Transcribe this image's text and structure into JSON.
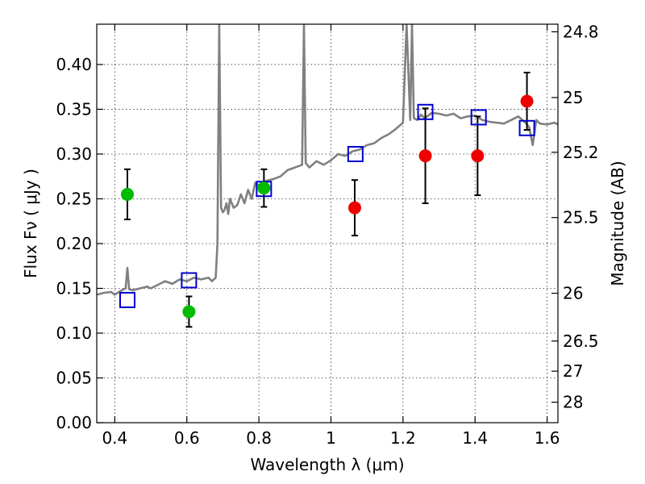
{
  "chart_data": {
    "type": "scatter",
    "title": "",
    "xlabel": "Wavelength  λ (μm)",
    "ylabel": "Flux  Fν  ( μJy )",
    "ylabel_right": "Magnitude (AB)",
    "xlim": [
      0.35,
      1.63
    ],
    "ylim": [
      0.0,
      0.445
    ],
    "grid": true,
    "x_ticks": [
      0.4,
      0.6,
      0.8,
      1.0,
      1.2,
      1.4,
      1.6
    ],
    "x_tick_labels": [
      "0.4",
      "0.6",
      "0.8",
      "1",
      "1.2",
      "1.4",
      "1.6"
    ],
    "y_ticks": [
      0.0,
      0.05,
      0.1,
      0.15,
      0.2,
      0.25,
      0.3,
      0.35,
      0.4
    ],
    "y_tick_labels": [
      "0.00",
      "0.05",
      "0.10",
      "0.15",
      "0.20",
      "0.25",
      "0.30",
      "0.35",
      "0.40"
    ],
    "mag_ticks": [
      "24.8",
      "25",
      "25.2",
      "25.5",
      "26",
      "26.5",
      "27",
      "28"
    ],
    "series": [
      {
        "name": "green-points",
        "kind": "points-with-errors",
        "color": "#00bb00",
        "x": [
          0.435,
          0.606,
          0.814
        ],
        "y": [
          0.255,
          0.124,
          0.262
        ],
        "err": [
          0.028,
          0.017,
          0.021
        ]
      },
      {
        "name": "red-points",
        "kind": "points-with-errors",
        "color": "#ee0000",
        "x": [
          1.066,
          1.262,
          1.407,
          1.544
        ],
        "y": [
          0.24,
          0.298,
          0.298,
          0.359
        ],
        "err": [
          0.031,
          0.053,
          0.044,
          0.032
        ]
      },
      {
        "name": "model-squares",
        "kind": "open-squares",
        "color": "#0000cc",
        "x": [
          0.435,
          0.606,
          0.814,
          1.068,
          1.262,
          1.41,
          1.544
        ],
        "y": [
          0.137,
          0.159,
          0.261,
          0.3,
          0.347,
          0.341,
          0.329
        ]
      },
      {
        "name": "sed-spectrum",
        "kind": "line",
        "color": "#808080",
        "x": [
          0.35,
          0.37,
          0.39,
          0.4,
          0.42,
          0.43,
          0.435,
          0.44,
          0.45,
          0.47,
          0.49,
          0.5,
          0.52,
          0.54,
          0.56,
          0.58,
          0.6,
          0.62,
          0.64,
          0.66,
          0.67,
          0.68,
          0.685,
          0.69,
          0.695,
          0.7,
          0.705,
          0.71,
          0.715,
          0.72,
          0.73,
          0.74,
          0.75,
          0.76,
          0.77,
          0.78,
          0.79,
          0.8,
          0.82,
          0.84,
          0.86,
          0.88,
          0.9,
          0.92,
          0.925,
          0.93,
          0.94,
          0.96,
          0.98,
          1.0,
          1.02,
          1.04,
          1.06,
          1.08,
          1.1,
          1.12,
          1.14,
          1.16,
          1.18,
          1.2,
          1.21,
          1.22,
          1.225,
          1.23,
          1.24,
          1.25,
          1.26,
          1.28,
          1.3,
          1.32,
          1.34,
          1.36,
          1.38,
          1.4,
          1.42,
          1.44,
          1.46,
          1.48,
          1.5,
          1.52,
          1.54,
          1.55,
          1.56,
          1.57,
          1.58,
          1.6,
          1.62,
          1.63
        ],
        "y": [
          0.143,
          0.145,
          0.146,
          0.143,
          0.148,
          0.15,
          0.173,
          0.149,
          0.148,
          0.15,
          0.152,
          0.15,
          0.154,
          0.158,
          0.155,
          0.16,
          0.158,
          0.162,
          0.16,
          0.162,
          0.158,
          0.162,
          0.2,
          0.445,
          0.24,
          0.235,
          0.238,
          0.245,
          0.233,
          0.25,
          0.24,
          0.243,
          0.255,
          0.245,
          0.26,
          0.25,
          0.268,
          0.265,
          0.27,
          0.272,
          0.275,
          0.282,
          0.285,
          0.288,
          0.445,
          0.29,
          0.285,
          0.292,
          0.288,
          0.293,
          0.3,
          0.298,
          0.303,
          0.305,
          0.31,
          0.312,
          0.318,
          0.322,
          0.328,
          0.335,
          0.445,
          0.338,
          0.445,
          0.34,
          0.338,
          0.344,
          0.34,
          0.346,
          0.345,
          0.343,
          0.345,
          0.34,
          0.342,
          0.343,
          0.338,
          0.336,
          0.335,
          0.334,
          0.338,
          0.342,
          0.335,
          0.33,
          0.31,
          0.338,
          0.334,
          0.333,
          0.335,
          0.333
        ]
      }
    ]
  }
}
